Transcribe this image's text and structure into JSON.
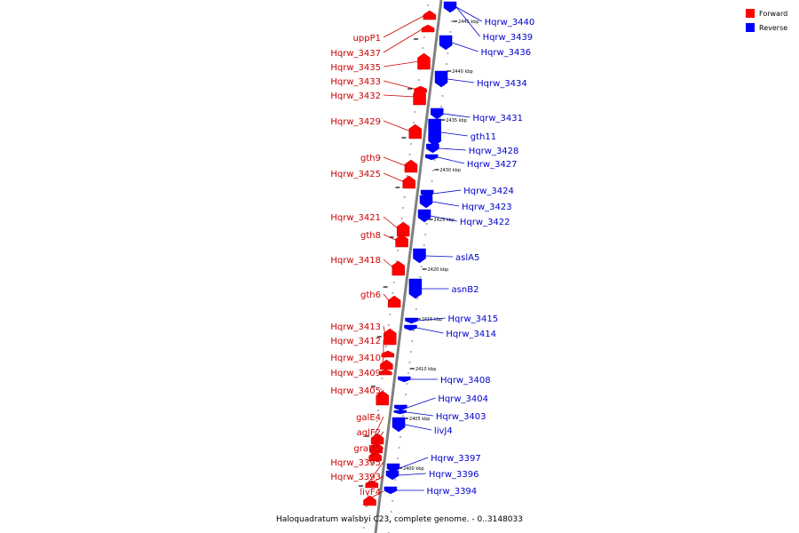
{
  "caption": "Haloquadratum walsbyi C23, complete genome. - 0..3148033",
  "legend": [
    {
      "label": "Forward",
      "color": "#ff0000"
    },
    {
      "label": "Reverse",
      "color": "#0000ff"
    }
  ],
  "colors": {
    "forward_text": "#cc0000",
    "reverse_text": "#0000cc",
    "axis": "#808080"
  },
  "ticks": [
    "2445 kbp",
    "2440 kbp",
    "2435 kbp",
    "2430 kbp",
    "2425 kbp",
    "2420 kbp",
    "2415 kbp",
    "2410 kbp",
    "2405 kbp",
    "2400 kbp"
  ],
  "forward_genes": [
    "uppP1",
    "Hqrw_3437",
    "Hqrw_3435",
    "Hqrw_3433",
    "Hqrw_3432",
    "Hqrw_3429",
    "gth9",
    "Hqrw_3425",
    "Hqrw_3421",
    "gth8",
    "Hqrw_3418",
    "gth6",
    "Hqrw_3413",
    "Hqrw_3412",
    "Hqrw_3410",
    "Hqrw_3409",
    "Hqrw_3405",
    "galE4",
    "aglF2",
    "graD5",
    "Hqrw_3395",
    "Hqrw_3393",
    "livF4"
  ],
  "reverse_genes": [
    "Hqrw_3440",
    "Hqrw_3439",
    "Hqrw_3436",
    "Hqrw_3434",
    "Hqrw_3431",
    "gth11",
    "Hqrw_3428",
    "Hqrw_3427",
    "Hqrw_3424",
    "Hqrw_3423",
    "Hqrw_3422",
    "aslA5",
    "asnB2",
    "Hqrw_3415",
    "Hqrw_3414",
    "Hqrw_3408",
    "Hqrw_3404",
    "Hqrw_3403",
    "livJ4",
    "Hqrw_3397",
    "Hqrw_3396",
    "Hqrw_3394"
  ]
}
